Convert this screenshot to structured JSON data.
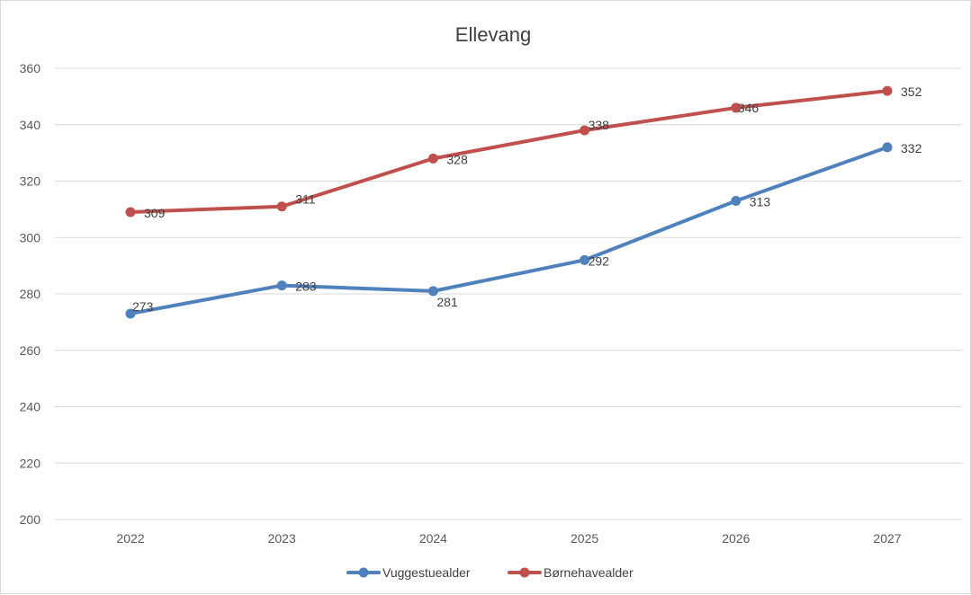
{
  "chart_data": {
    "type": "line",
    "title": "Ellevang",
    "xlabel": "",
    "ylabel": "",
    "categories": [
      "2022",
      "2023",
      "2024",
      "2025",
      "2026",
      "2027"
    ],
    "ylim": [
      200,
      360
    ],
    "yticks": [
      200,
      220,
      240,
      260,
      280,
      300,
      320,
      340,
      360
    ],
    "grid": "horizontal",
    "legend": "bottom",
    "series": [
      {
        "name": "Vuggestuealder",
        "color": "#4f81bd",
        "values": [
          273,
          283,
          281,
          292,
          313,
          332
        ]
      },
      {
        "name": "Børnehavealder",
        "color": "#c0504d",
        "values": [
          309,
          311,
          328,
          338,
          346,
          352
        ]
      }
    ]
  }
}
